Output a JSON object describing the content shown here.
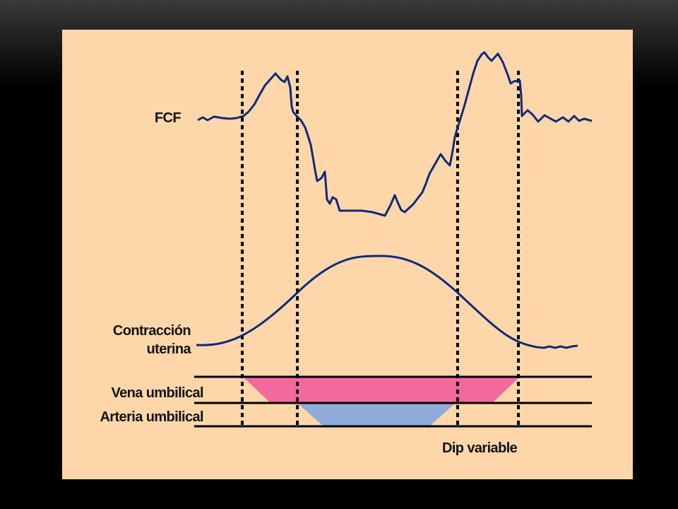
{
  "labels": {
    "fcf": "FCF",
    "contraction_line1": "Contracción",
    "contraction_line2": "uterina",
    "vein": "Vena umbilical",
    "artery": "Arteria umbilical",
    "dip": "Dip variable"
  },
  "colors": {
    "background": "#000000",
    "panel": "#fdd7a9",
    "curve": "#0d2a7a",
    "vein_fill": "#f2699c",
    "artery_fill": "#8fabdc",
    "line": "#000000"
  }
}
